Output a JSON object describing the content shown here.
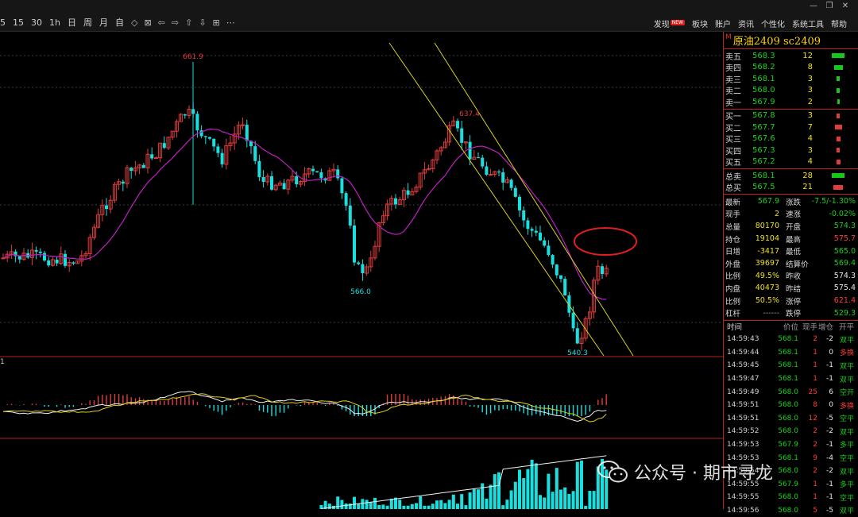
{
  "toolbar": {
    "periods": [
      "5",
      "15",
      "30",
      "1h",
      "日",
      "周",
      "月",
      "自"
    ],
    "icons": [
      "diamond-icon",
      "zoom-in-icon",
      "arrow-left-icon",
      "arrow-right-icon",
      "arrow-up-icon",
      "arrow-down-icon",
      "settings-icon",
      "more-icon"
    ],
    "menu": [
      "发现",
      "板块",
      "账户",
      "资讯",
      "个性化",
      "系统工具",
      "帮助"
    ],
    "badge": "NEW"
  },
  "chart": {
    "high_label": "661.9",
    "mid_high_label": "637.4",
    "low_label": "566.0",
    "last_low_label": "540.3",
    "sub_label": "1"
  },
  "panel": {
    "mark": "M",
    "title": "原油2409  sc2409",
    "asks": [
      {
        "label": "卖五",
        "price": "568.3",
        "vol": "12",
        "bar": 1.0
      },
      {
        "label": "卖四",
        "price": "568.2",
        "vol": "8",
        "bar": 0.67
      },
      {
        "label": "卖三",
        "price": "568.1",
        "vol": "3",
        "bar": 0.25
      },
      {
        "label": "卖二",
        "price": "568.0",
        "vol": "3",
        "bar": 0.25
      },
      {
        "label": "卖一",
        "price": "567.9",
        "vol": "2",
        "bar": 0.17
      }
    ],
    "bids": [
      {
        "label": "买一",
        "price": "567.8",
        "vol": "3",
        "bar": 0.25
      },
      {
        "label": "买二",
        "price": "567.7",
        "vol": "7",
        "bar": 0.58
      },
      {
        "label": "买三",
        "price": "567.6",
        "vol": "4",
        "bar": 0.33
      },
      {
        "label": "买四",
        "price": "567.3",
        "vol": "3",
        "bar": 0.25
      },
      {
        "label": "买五",
        "price": "567.2",
        "vol": "4",
        "bar": 0.33
      }
    ],
    "totals": [
      {
        "label": "总卖",
        "price": "568.1",
        "vol": "28",
        "color": "green",
        "bar": 1.0
      },
      {
        "label": "总买",
        "price": "567.5",
        "vol": "21",
        "color": "red",
        "bar": 0.75
      }
    ],
    "stats": [
      {
        "l": "最新",
        "v": "567.9",
        "vc": "green",
        "l2": "涨跌",
        "v2": "-7.5/-1.30%",
        "v2c": "green"
      },
      {
        "l": "现手",
        "v": "2",
        "vc": "yellow",
        "l2": "速涨",
        "v2": "-0.02%",
        "v2c": "green"
      },
      {
        "l": "总量",
        "v": "80170",
        "vc": "yellow",
        "l2": "开盘",
        "v2": "574.3",
        "v2c": "green"
      },
      {
        "l": "持仓",
        "v": "19104",
        "vc": "yellow",
        "l2": "最高",
        "v2": "575.7",
        "v2c": "red"
      },
      {
        "l": "日增",
        "v": "-3417",
        "vc": "yellow",
        "l2": "最低",
        "v2": "565.0",
        "v2c": "green"
      },
      {
        "l": "外盘",
        "v": "39697",
        "vc": "yellow",
        "l2": "结算价",
        "v2": "569.4",
        "v2c": "green"
      },
      {
        "l": "比例",
        "v": "49.5%",
        "vc": "yellow",
        "l2": "昨收",
        "v2": "574.3",
        "v2c": "white"
      },
      {
        "l": "内盘",
        "v": "40473",
        "vc": "yellow",
        "l2": "昨结",
        "v2": "575.4",
        "v2c": "white"
      },
      {
        "l": "比例",
        "v": "50.5%",
        "vc": "yellow",
        "l2": "涨停",
        "v2": "621.4",
        "v2c": "red"
      },
      {
        "l": "杠杆",
        "v": "------",
        "vc": "dim",
        "l2": "跌停",
        "v2": "529.3",
        "v2c": "green"
      }
    ],
    "ticks_head": {
      "time": "时间",
      "price": "价位",
      "vol": "现手",
      "chg": "增仓",
      "type": "开平"
    },
    "ticks": [
      {
        "time": "14:59:43",
        "price": "568.1",
        "vol": "2",
        "chg": "-2",
        "type": "双平",
        "tc": "green"
      },
      {
        "time": "14:59:44",
        "price": "568.1",
        "vol": "1",
        "chg": "0",
        "type": "多换",
        "tc": "red"
      },
      {
        "time": "14:59:45",
        "price": "568.1",
        "vol": "1",
        "chg": "-1",
        "type": "双平",
        "tc": "green"
      },
      {
        "time": "14:59:47",
        "price": "568.1",
        "vol": "1",
        "chg": "-1",
        "type": "双平",
        "tc": "green"
      },
      {
        "time": "14:59:49",
        "price": "568.0",
        "vol": "25",
        "chg": "6",
        "type": "空开",
        "tc": "green"
      },
      {
        "time": "14:59:51",
        "price": "568.0",
        "vol": "8",
        "chg": "0",
        "type": "多换",
        "tc": "red"
      },
      {
        "time": "14:59:51",
        "price": "568.0",
        "vol": "12",
        "chg": "-5",
        "type": "空平",
        "tc": "green"
      },
      {
        "time": "14:59:52",
        "price": "568.0",
        "vol": "2",
        "chg": "-2",
        "type": "双平",
        "tc": "green"
      },
      {
        "time": "14:59:53",
        "price": "567.9",
        "vol": "2",
        "chg": "-1",
        "type": "多平",
        "tc": "green"
      },
      {
        "time": "14:59:53",
        "price": "568.1",
        "vol": "9",
        "chg": "-4",
        "type": "空平",
        "tc": "green"
      },
      {
        "time": "14:59:54",
        "price": "568.0",
        "vol": "2",
        "chg": "-2",
        "type": "双平",
        "tc": "green"
      },
      {
        "time": "14:59:55",
        "price": "567.9",
        "vol": "1",
        "chg": "-1",
        "type": "多平",
        "tc": "green"
      },
      {
        "time": "14:59:55",
        "price": "568.0",
        "vol": "1",
        "chg": "-1",
        "type": "空平",
        "tc": "green"
      },
      {
        "time": "14:59:56",
        "price": "568.0",
        "vol": "5",
        "chg": "-5",
        "type": "双平",
        "tc": "green"
      }
    ]
  },
  "watermark": {
    "text": "公众号 · 期市寻龙",
    "icon": "wechat-icon"
  },
  "colors": {
    "up": "#e03c3c",
    "down": "#18e0e0",
    "ma": "#c020c0",
    "channel": "#d8d020",
    "border": "#b22222"
  }
}
